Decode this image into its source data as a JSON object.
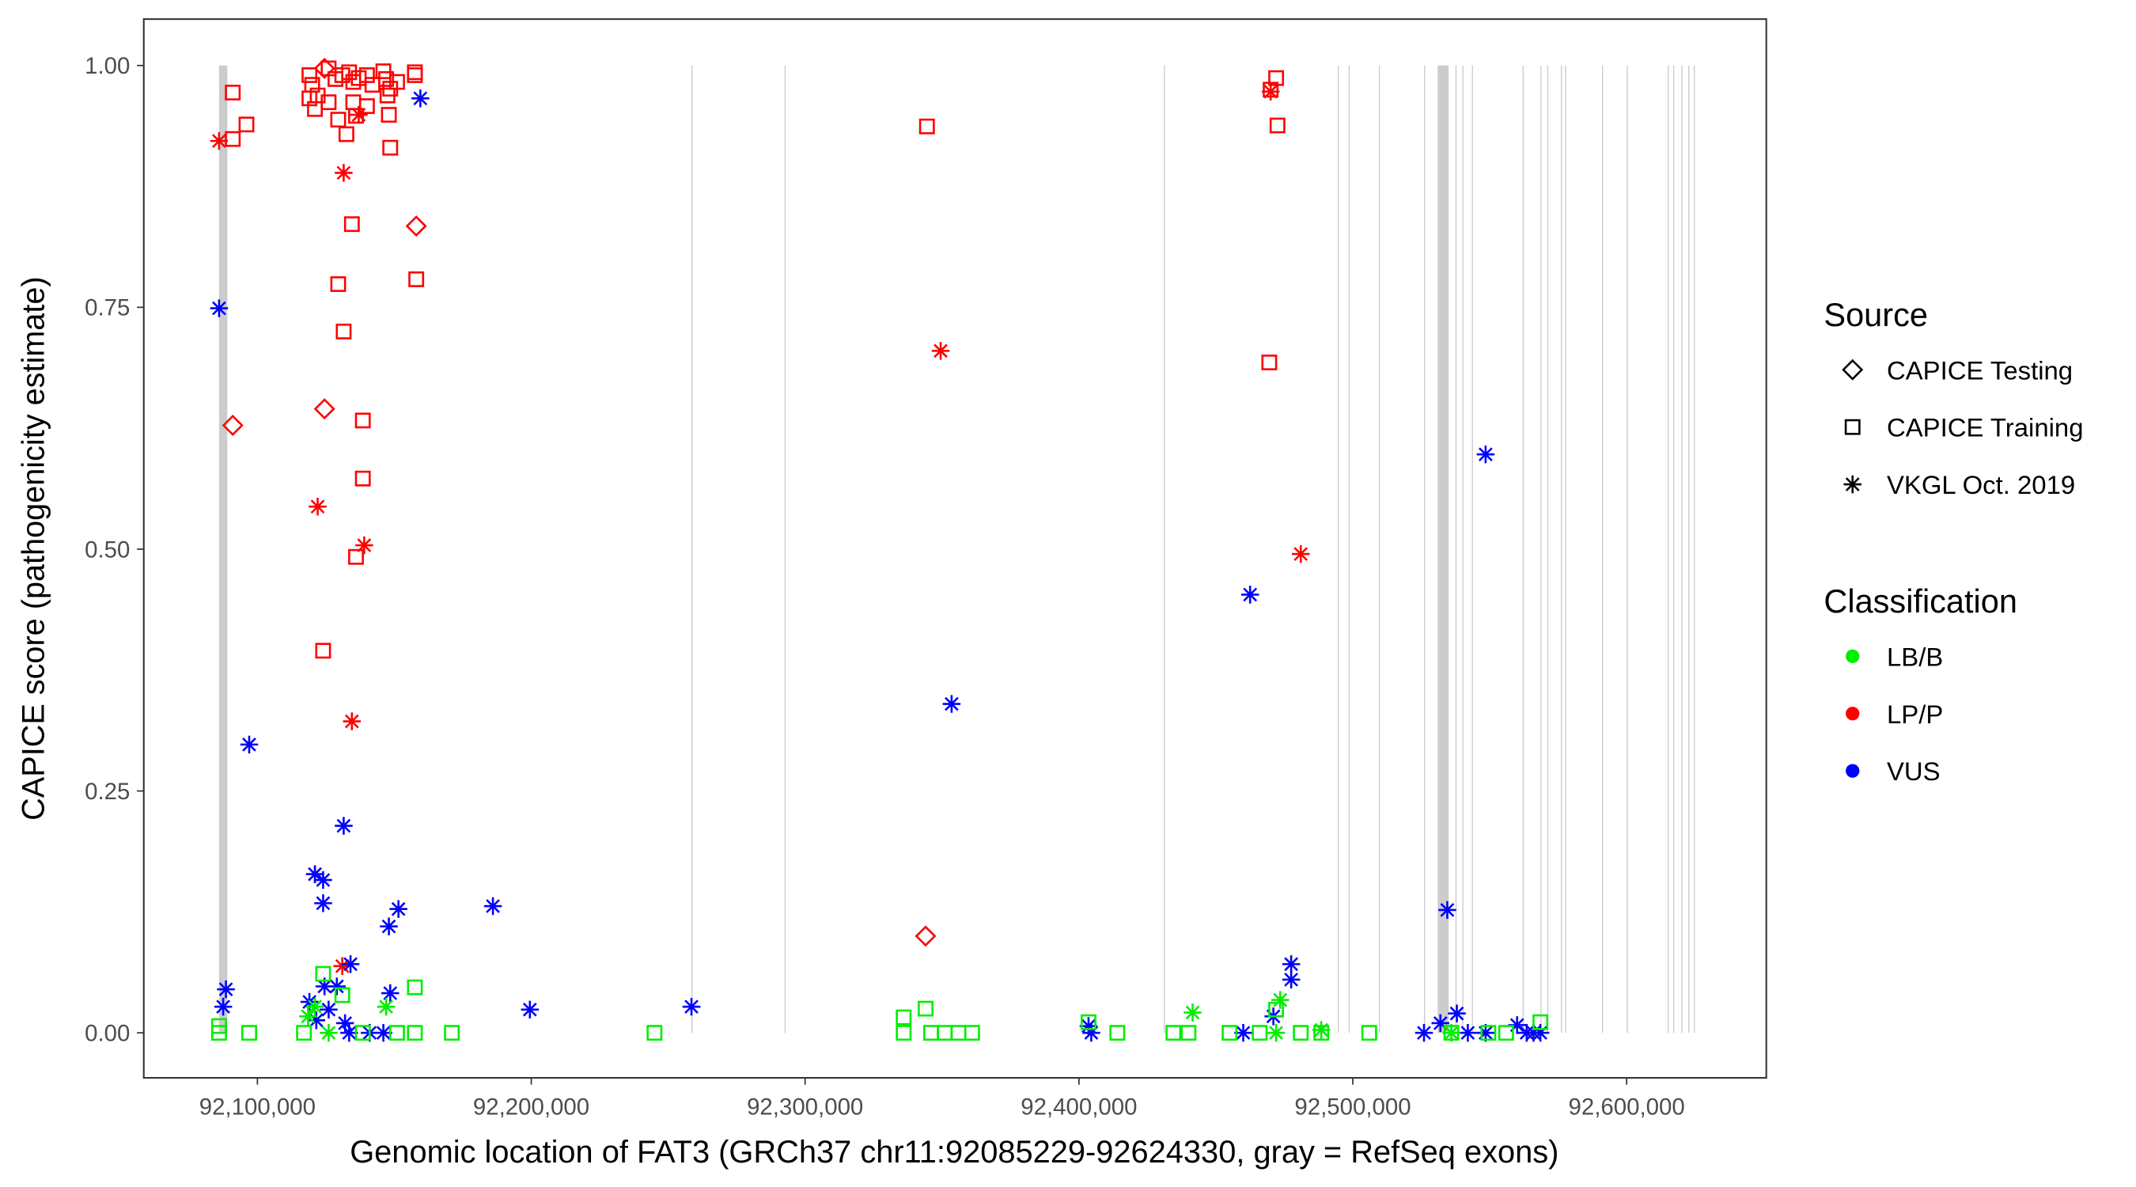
{
  "chart_data": {
    "type": "scatter",
    "xlabel": "Genomic location of FAT3 (GRCh37 chr11:92085229-92624330, gray = RefSeq exons)",
    "ylabel": "CAPICE score (pathogenicity estimate)",
    "xlim": [
      92080000,
      92630000
    ],
    "ylim": [
      -0.045,
      1.05
    ],
    "x_ticks": [
      92100000,
      92200000,
      92300000,
      92400000,
      92500000,
      92600000
    ],
    "x_tick_labels": [
      "92,100,000",
      "92,200,000",
      "92,300,000",
      "92,400,000",
      "92,500,000",
      "92,600,000"
    ],
    "y_ticks": [
      0,
      0.25,
      0.5,
      0.75,
      1.0
    ],
    "y_tick_labels": [
      "0.00",
      "0.25",
      "0.50",
      "0.75",
      "1.00"
    ],
    "grid": false,
    "legend_placement": "right",
    "legend": {
      "source_title": "Source",
      "sources": [
        {
          "label": "CAPICE Testing",
          "shape": "diamond"
        },
        {
          "label": "CAPICE Training",
          "shape": "square"
        },
        {
          "label": "VKGL Oct. 2019",
          "shape": "asterisk"
        }
      ],
      "classification_title": "Classification",
      "classes": [
        {
          "label": "LB/B",
          "color": "#00ee00"
        },
        {
          "label": "LP/P",
          "color": "#ff0000"
        },
        {
          "label": "VUS",
          "color": "#0000ff"
        }
      ]
    },
    "exons": [
      [
        92086000,
        92089000
      ],
      [
        92258500,
        92258800
      ],
      [
        92292500,
        92292800
      ],
      [
        92431000,
        92431300
      ],
      [
        92494500,
        92494800
      ],
      [
        92498500,
        92498800
      ],
      [
        92509500,
        92509800
      ],
      [
        92526000,
        92526300
      ],
      [
        92531000,
        92535000
      ],
      [
        92537500,
        92537800
      ],
      [
        92540000,
        92540300
      ],
      [
        92543500,
        92543800
      ],
      [
        92562000,
        92562300
      ],
      [
        92568500,
        92568800
      ],
      [
        92571000,
        92571300
      ],
      [
        92576000,
        92576300
      ],
      [
        92577500,
        92577800
      ],
      [
        92591000,
        92591300
      ],
      [
        92600000,
        92600300
      ],
      [
        92615000,
        92615300
      ],
      [
        92617000,
        92617300
      ],
      [
        92620000,
        92620300
      ],
      [
        92622500,
        92622800
      ],
      [
        92624500,
        92624800
      ]
    ],
    "series": [
      {
        "source": "CAPICE Training",
        "classification": "LP/P",
        "points": [
          [
            92119000,
            0.99
          ],
          [
            92120000,
            0.98
          ],
          [
            92122000,
            0.969
          ],
          [
            92119000,
            0.966
          ],
          [
            92121000,
            0.955
          ],
          [
            92126000,
            0.997
          ],
          [
            92128500,
            0.986
          ],
          [
            92131000,
            0.99
          ],
          [
            92133500,
            0.993
          ],
          [
            92135000,
            0.983
          ],
          [
            92137000,
            0.987
          ],
          [
            92140000,
            0.99
          ],
          [
            92142000,
            0.98
          ],
          [
            92146000,
            0.994
          ],
          [
            92147000,
            0.986
          ],
          [
            92148500,
            0.976
          ],
          [
            92147500,
            0.969
          ],
          [
            92151000,
            0.983
          ],
          [
            92157500,
            0.99
          ],
          [
            92157500,
            0.993
          ],
          [
            92126000,
            0.962
          ],
          [
            92129500,
            0.944
          ],
          [
            92135000,
            0.962
          ],
          [
            92136000,
            0.948
          ],
          [
            92132500,
            0.929
          ],
          [
            92140000,
            0.958
          ],
          [
            92148000,
            0.949
          ],
          [
            92091000,
            0.972
          ],
          [
            92096000,
            0.939
          ],
          [
            92091000,
            0.924
          ],
          [
            92148500,
            0.915
          ],
          [
            92344500,
            0.937
          ],
          [
            92472000,
            0.987
          ],
          [
            92470000,
            0.975
          ],
          [
            92472500,
            0.938
          ],
          [
            92134500,
            0.836
          ],
          [
            92158000,
            0.779
          ],
          [
            92129500,
            0.774
          ],
          [
            92131500,
            0.725
          ],
          [
            92138500,
            0.633
          ],
          [
            92138500,
            0.573
          ],
          [
            92136000,
            0.492
          ],
          [
            92124000,
            0.395
          ],
          [
            92469500,
            0.693
          ]
        ]
      },
      {
        "source": "VKGL Oct. 2019",
        "classification": "LP/P",
        "points": [
          [
            92086000,
            0.922
          ],
          [
            92131500,
            0.889
          ],
          [
            92137000,
            0.949
          ],
          [
            92349500,
            0.705
          ],
          [
            92122000,
            0.544
          ],
          [
            92139000,
            0.504
          ],
          [
            92134500,
            0.322
          ],
          [
            92481000,
            0.495
          ],
          [
            92121000,
            0.164
          ],
          [
            92470000,
            0.973
          ],
          [
            92131000,
            0.069
          ]
        ]
      },
      {
        "source": "CAPICE Testing",
        "classification": "LP/P",
        "points": [
          [
            92124500,
            0.997
          ],
          [
            92158000,
            0.834
          ],
          [
            92091000,
            0.628
          ],
          [
            92124500,
            0.645
          ],
          [
            92344000,
            0.1
          ]
        ]
      },
      {
        "source": "VKGL Oct. 2019",
        "classification": "VUS",
        "points": [
          [
            92159500,
            0.966
          ],
          [
            92086000,
            0.749
          ],
          [
            92097000,
            0.298
          ],
          [
            92548500,
            0.598
          ],
          [
            92462500,
            0.453
          ],
          [
            92353500,
            0.34
          ],
          [
            92131500,
            0.214
          ],
          [
            92121000,
            0.164
          ],
          [
            92124000,
            0.158
          ],
          [
            92124000,
            0.134
          ],
          [
            92151500,
            0.128
          ],
          [
            92148000,
            0.11
          ],
          [
            92186000,
            0.131
          ],
          [
            92534500,
            0.127
          ],
          [
            92088500,
            0.045
          ],
          [
            92087500,
            0.027
          ],
          [
            92134000,
            0.071
          ],
          [
            92124500,
            0.048
          ],
          [
            92129000,
            0.048
          ],
          [
            92148500,
            0.041
          ],
          [
            92119000,
            0.032
          ],
          [
            92126000,
            0.024
          ],
          [
            92121500,
            0.013
          ],
          [
            92199500,
            0.024
          ],
          [
            92258500,
            0.027
          ],
          [
            92477500,
            0.071
          ],
          [
            92477500,
            0.055
          ],
          [
            92471000,
            0.017
          ],
          [
            92460000,
            0
          ],
          [
            92526000,
            0
          ],
          [
            92532000,
            0.01
          ],
          [
            92538000,
            0.02
          ],
          [
            92542000,
            0
          ],
          [
            92548500,
            0
          ],
          [
            92560000,
            0.008
          ],
          [
            92563500,
            0
          ],
          [
            92566000,
            0
          ],
          [
            92568500,
            0
          ],
          [
            92403500,
            0.007
          ],
          [
            92404500,
            0
          ],
          [
            92132000,
            0.01
          ],
          [
            92133500,
            0
          ],
          [
            92141000,
            0
          ],
          [
            92146000,
            0
          ]
        ]
      },
      {
        "source": "CAPICE Training",
        "classification": "LB/B",
        "points": [
          [
            92086000,
            0.007
          ],
          [
            92086000,
            0
          ],
          [
            92097000,
            0
          ],
          [
            92117000,
            0
          ],
          [
            92124000,
            0.061
          ],
          [
            92131000,
            0.039
          ],
          [
            92157500,
            0.047
          ],
          [
            92157500,
            0
          ],
          [
            92171000,
            0
          ],
          [
            92245000,
            0
          ],
          [
            92336000,
            0.016
          ],
          [
            92336000,
            0
          ],
          [
            92344000,
            0.025
          ],
          [
            92346000,
            0
          ],
          [
            92351000,
            0
          ],
          [
            92356000,
            0
          ],
          [
            92361000,
            0
          ],
          [
            92403500,
            0.011
          ],
          [
            92414000,
            0
          ],
          [
            92434500,
            0
          ],
          [
            92440000,
            0
          ],
          [
            92455000,
            0
          ],
          [
            92466000,
            0
          ],
          [
            92472000,
            0.024
          ],
          [
            92481000,
            0
          ],
          [
            92488500,
            0
          ],
          [
            92506000,
            0
          ],
          [
            92536000,
            0
          ],
          [
            92549500,
            0
          ],
          [
            92556000,
            0
          ],
          [
            92568500,
            0.011
          ],
          [
            92138500,
            0
          ],
          [
            92151000,
            0
          ]
        ]
      },
      {
        "source": "VKGL Oct. 2019",
        "classification": "LB/B",
        "points": [
          [
            92118500,
            0.017
          ],
          [
            92121000,
            0.027
          ],
          [
            92147000,
            0.027
          ],
          [
            92441500,
            0.021
          ],
          [
            92473500,
            0.034
          ],
          [
            92488500,
            0.003
          ],
          [
            92126000,
            0
          ],
          [
            92536000,
            0
          ],
          [
            92472000,
            0
          ]
        ]
      }
    ]
  }
}
